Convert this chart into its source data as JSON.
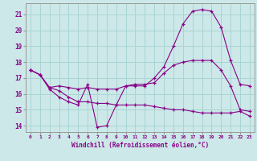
{
  "xlabel": "Windchill (Refroidissement éolien,°C)",
  "background_color": "#cce8e8",
  "grid_color": "#aad4d4",
  "line_color": "#880088",
  "x_ticks": [
    0,
    1,
    2,
    3,
    4,
    5,
    6,
    7,
    8,
    9,
    10,
    11,
    12,
    13,
    14,
    15,
    16,
    17,
    18,
    19,
    20,
    21,
    22,
    23
  ],
  "y_ticks": [
    14,
    15,
    16,
    17,
    18,
    19,
    20,
    21
  ],
  "xlim": [
    -0.5,
    23.5
  ],
  "ylim": [
    13.6,
    21.7
  ],
  "series": [
    {
      "x": [
        0,
        1,
        2,
        3,
        4,
        5,
        6,
        7,
        8,
        9,
        10,
        11,
        12,
        13,
        14,
        15,
        16,
        17,
        18,
        19,
        20,
        21,
        22,
        23
      ],
      "y": [
        17.5,
        17.2,
        16.3,
        15.8,
        15.5,
        15.3,
        16.6,
        13.9,
        14.0,
        15.3,
        16.5,
        16.5,
        16.5,
        17.0,
        17.7,
        19.0,
        20.4,
        21.2,
        21.3,
        21.2,
        20.2,
        18.1,
        16.6,
        16.5
      ]
    },
    {
      "x": [
        0,
        1,
        2,
        3,
        4,
        5,
        6,
        7,
        8,
        9,
        10,
        11,
        12,
        13,
        14,
        15,
        16,
        17,
        18,
        19,
        20,
        21,
        22,
        23
      ],
      "y": [
        17.5,
        17.2,
        16.4,
        16.5,
        16.4,
        16.3,
        16.4,
        16.3,
        16.3,
        16.3,
        16.5,
        16.6,
        16.6,
        16.7,
        17.3,
        17.8,
        18.0,
        18.1,
        18.1,
        18.1,
        17.5,
        16.5,
        15.0,
        14.9
      ]
    },
    {
      "x": [
        0,
        1,
        2,
        3,
        4,
        5,
        6,
        7,
        8,
        9,
        10,
        11,
        12,
        13,
        14,
        15,
        16,
        17,
        18,
        19,
        20,
        21,
        22,
        23
      ],
      "y": [
        17.5,
        17.2,
        16.4,
        16.2,
        15.8,
        15.5,
        15.5,
        15.4,
        15.4,
        15.3,
        15.3,
        15.3,
        15.3,
        15.2,
        15.1,
        15.0,
        15.0,
        14.9,
        14.8,
        14.8,
        14.8,
        14.8,
        14.9,
        14.6
      ]
    }
  ]
}
